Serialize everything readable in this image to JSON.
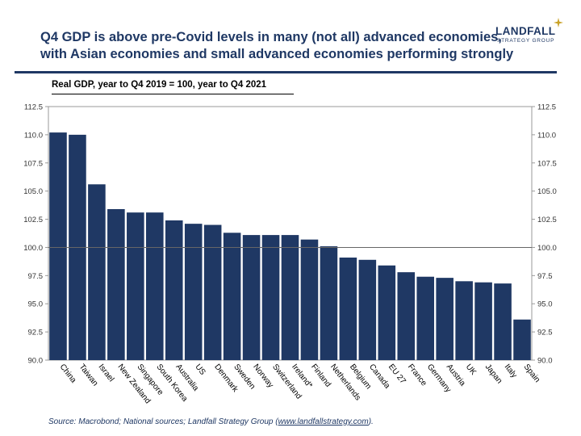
{
  "header": {
    "title_line1": "Q4 GDP is above pre-Covid levels in many (not all) advanced economies,",
    "title_line2": "with Asian economies and small advanced economies performing strongly",
    "logo_name": "LANDFALL",
    "logo_tagline": "STRATEGY GROUP"
  },
  "colors": {
    "brand": "#1f3864",
    "bar": "#1f3864"
  },
  "chart_data": {
    "type": "bar",
    "title": "Real GDP, year to Q4 2019 = 100, year to Q4 2021",
    "categories": [
      "China",
      "Taiwan",
      "Israel",
      "New Zealand",
      "Singapore",
      "South Korea",
      "Australia",
      "US",
      "Denmark",
      "Sweden",
      "Norway",
      "Switzerland",
      "Ireland*",
      "Finland",
      "Netherlands",
      "Belgium",
      "Canada",
      "EU 27",
      "France",
      "Germany",
      "Austria",
      "UK",
      "Japan",
      "Italy",
      "Spain"
    ],
    "values": [
      110.2,
      110.0,
      105.6,
      103.4,
      103.1,
      103.1,
      102.4,
      102.1,
      102.0,
      101.3,
      101.1,
      101.1,
      101.1,
      100.7,
      100.1,
      99.1,
      98.9,
      98.4,
      97.8,
      97.4,
      97.3,
      97.0,
      96.9,
      96.8,
      93.6
    ],
    "ylim": [
      90,
      112.5
    ],
    "yticks": [
      "90.0",
      "92.5",
      "95.0",
      "97.5",
      "100.0",
      "102.5",
      "105.0",
      "107.5",
      "110.0",
      "112.5"
    ],
    "reference_line": 100,
    "grid": false,
    "legend": "none"
  },
  "footer": {
    "source_prefix": "Source: Macrobond; National sources; Landfall Strategy Group (",
    "source_link": "www.landfallstrategy.com",
    "source_suffix": ")."
  }
}
